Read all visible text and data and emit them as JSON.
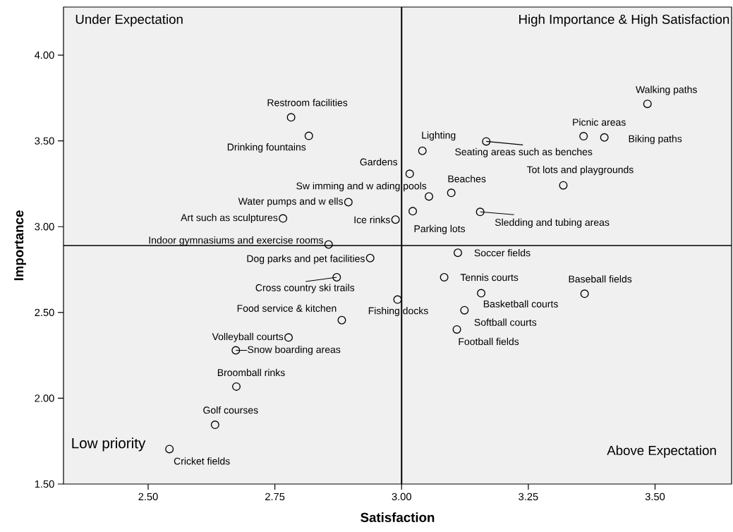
{
  "chart_data": {
    "type": "scatter",
    "xlabel": "Satisfaction",
    "ylabel": "Importance",
    "xlim": [
      2.333,
      3.651
    ],
    "ylim": [
      1.5,
      4.28
    ],
    "xticks": [
      {
        "value": 2.5,
        "label": "2.50"
      },
      {
        "value": 2.75,
        "label": "2.75"
      },
      {
        "value": 3.0,
        "label": "3.00"
      },
      {
        "value": 3.25,
        "label": "3.25"
      },
      {
        "value": 3.5,
        "label": "3.50"
      }
    ],
    "yticks": [
      {
        "value": 1.5,
        "label": "1.50"
      },
      {
        "value": 2.0,
        "label": "2.00"
      },
      {
        "value": 2.5,
        "label": "2.50"
      },
      {
        "value": 3.0,
        "label": "3.00"
      },
      {
        "value": 3.5,
        "label": "3.50"
      },
      {
        "value": 4.0,
        "label": "4.00"
      }
    ],
    "grid": false,
    "marker": "circle",
    "series": [
      {
        "color": "#000000",
        "x": [
          3.485,
          3.359,
          3.4,
          3.167,
          3.041,
          3.016,
          3.319,
          3.098,
          3.054,
          3.022,
          3.155,
          2.988,
          2.895,
          2.766,
          2.782,
          2.817,
          2.856,
          2.938,
          2.872,
          2.992,
          2.882,
          2.777,
          2.673,
          2.674,
          2.632,
          2.542,
          3.111,
          3.084,
          3.157,
          3.124,
          3.109,
          3.361
        ],
        "values": [
          3.716,
          3.527,
          3.52,
          3.497,
          3.442,
          3.308,
          3.241,
          3.197,
          3.176,
          3.09,
          3.086,
          3.041,
          3.143,
          3.048,
          3.637,
          3.529,
          2.896,
          2.817,
          2.705,
          2.575,
          2.455,
          2.354,
          2.279,
          2.068,
          1.845,
          1.704,
          2.848,
          2.705,
          2.612,
          2.513,
          2.401,
          2.609
        ]
      }
    ],
    "ref_lines": [
      {
        "axis": "x",
        "value": 3.0,
        "color": "#000000"
      },
      {
        "axis": "y",
        "value": 2.89,
        "color": "#000000"
      }
    ],
    "annotations": [
      "Under Expectation",
      "High Importance & High Satisfaction",
      "Low priority",
      "Above Expectation",
      {
        "text": "Walking paths",
        "x": 3.485,
        "y": 3.716
      },
      {
        "text": "Picnic areas",
        "x": 3.359,
        "y": 3.527
      },
      {
        "text": "Biking paths",
        "x": 3.4,
        "y": 3.52
      },
      {
        "text": "Seating areas such as benches",
        "x": 3.167,
        "y": 3.497
      },
      {
        "text": "Lighting",
        "x": 3.041,
        "y": 3.442
      },
      {
        "text": "Gardens",
        "x": 3.016,
        "y": 3.308
      },
      {
        "text": "Tot lots and playgrounds",
        "x": 3.319,
        "y": 3.241
      },
      {
        "text": "Beaches",
        "x": 3.098,
        "y": 3.197
      },
      {
        "text": "Sw imming and w ading pools",
        "x": 3.054,
        "y": 3.176
      },
      {
        "text": "Parking lots",
        "x": 3.022,
        "y": 3.09
      },
      {
        "text": "Sledding and tubing areas",
        "x": 3.155,
        "y": 3.086
      },
      {
        "text": "Ice rinks",
        "x": 2.988,
        "y": 3.041
      },
      {
        "text": "Water pumps and w ells",
        "x": 2.895,
        "y": 3.143
      },
      {
        "text": "Art such as sculptures",
        "x": 2.766,
        "y": 3.048
      },
      {
        "text": "Restroom facilities",
        "x": 2.782,
        "y": 3.637
      },
      {
        "text": "Drinking fountains",
        "x": 2.817,
        "y": 3.529
      },
      {
        "text": "Indoor gymnasiums and exercise rooms",
        "x": 2.856,
        "y": 2.896
      },
      {
        "text": "Dog parks and pet facilities",
        "x": 2.938,
        "y": 2.817
      },
      {
        "text": "Cross country ski trails",
        "x": 2.872,
        "y": 2.705
      },
      {
        "text": "Fishing docks",
        "x": 2.992,
        "y": 2.575
      },
      {
        "text": "Food service & kitchen",
        "x": 2.882,
        "y": 2.455
      },
      {
        "text": "Volleyball courts",
        "x": 2.777,
        "y": 2.354
      },
      {
        "text": "Snow boarding areas",
        "x": 2.673,
        "y": 2.279
      },
      {
        "text": "Broomball rinks",
        "x": 2.674,
        "y": 2.068
      },
      {
        "text": "Golf courses",
        "x": 2.632,
        "y": 1.845
      },
      {
        "text": "Cricket fields",
        "x": 2.542,
        "y": 1.704
      },
      {
        "text": "Soccer fields",
        "x": 3.111,
        "y": 2.848
      },
      {
        "text": "Tennis courts",
        "x": 3.084,
        "y": 2.705
      },
      {
        "text": "Basketball courts",
        "x": 3.157,
        "y": 2.612
      },
      {
        "text": "Softball courts",
        "x": 3.124,
        "y": 2.513
      },
      {
        "text": "Football fields",
        "x": 3.109,
        "y": 2.401
      },
      {
        "text": "Baseball fields",
        "x": 3.361,
        "y": 2.609
      }
    ]
  }
}
